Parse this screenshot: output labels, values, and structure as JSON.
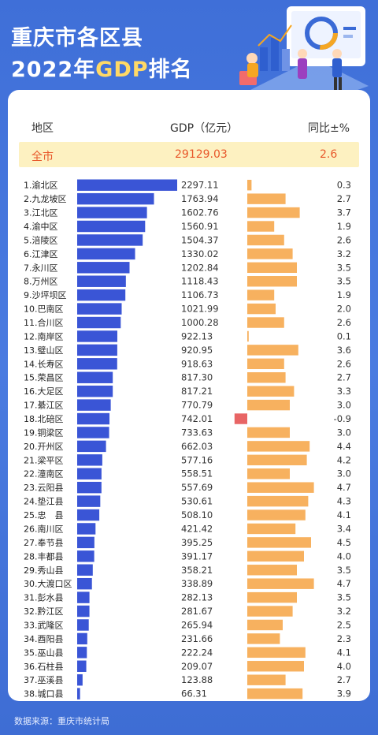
{
  "title_line1": "重庆市各区县",
  "title_line2_pre": "2022年",
  "title_line2_hl": "GDP",
  "title_line2_post": "排名",
  "source": "数据来源：重庆市统计局",
  "colors": {
    "gdp_bar": "#3a55d6",
    "yoy_positive": "#f7b15f",
    "yoy_negative": "#e86565",
    "total_text": "#e8582b",
    "total_bg": "#fdf1c1"
  },
  "chart_data": {
    "type": "bar",
    "columns": [
      "地区",
      "GDP（亿元）",
      "同比±%"
    ],
    "total": {
      "label": "全市",
      "gdp": "29129.03",
      "yoy": "2.6"
    },
    "categories": [
      "1.渝北区",
      "2.九龙坡区",
      "3.江北区",
      "4.渝中区",
      "5.涪陵区",
      "6.江津区",
      "7.永川区",
      "8.万州区",
      "9.沙坪坝区",
      "10.巴南区",
      "11.合川区",
      "12.南岸区",
      "13.璧山区",
      "14.长寿区",
      "15.荣昌区",
      "16.大足区",
      "17.綦江区",
      "18.北碚区",
      "19.铜梁区",
      "20.开州区",
      "21.梁平区",
      "22.潼南区",
      "23.云阳县",
      "24.垫江县",
      "25.忠　县",
      "26.南川区",
      "27.奉节县",
      "28.丰都县",
      "29.秀山县",
      "30.大渡口区",
      "31.彭水县",
      "32.黔江区",
      "33.武隆区",
      "34.酉阳县",
      "35.巫山县",
      "36.石柱县",
      "37.巫溪县",
      "38.城口县"
    ],
    "series": [
      {
        "values": [
          "2297.11",
          "1763.94",
          "1602.76",
          "1560.91",
          "1504.37",
          "1330.02",
          "1202.84",
          "1118.43",
          "1106.73",
          "1021.99",
          "1000.28",
          "922.13",
          "920.95",
          "918.63",
          "817.30",
          "817.21",
          "770.79",
          "742.01",
          "733.63",
          "662.03",
          "577.16",
          "558.51",
          "557.69",
          "530.61",
          "508.10",
          "421.42",
          "395.25",
          "391.17",
          "358.21",
          "338.89",
          "282.13",
          "281.67",
          "265.94",
          "231.66",
          "222.24",
          "209.07",
          "123.88",
          "66.31"
        ]
      },
      {
        "values": [
          "0.3",
          "2.7",
          "3.7",
          "1.9",
          "2.6",
          "3.2",
          "3.5",
          "3.5",
          "1.9",
          "2.0",
          "2.6",
          "0.1",
          "3.6",
          "2.6",
          "2.7",
          "3.3",
          "3.0",
          "-0.9",
          "3.0",
          "4.4",
          "4.2",
          "3.0",
          "4.7",
          "4.3",
          "4.1",
          "3.4",
          "4.5",
          "4.0",
          "3.5",
          "4.7",
          "3.5",
          "3.2",
          "2.5",
          "2.3",
          "4.1",
          "4.0",
          "2.7",
          "3.9"
        ]
      }
    ]
  }
}
